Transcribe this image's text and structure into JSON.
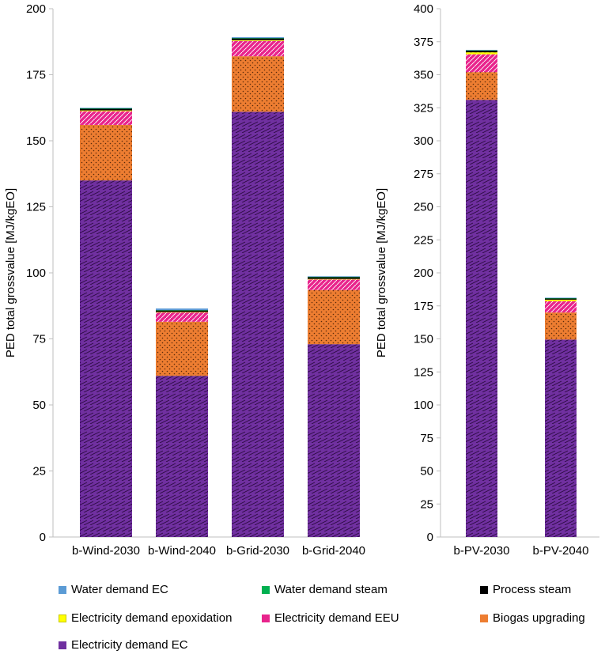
{
  "chart_data": [
    {
      "type": "bar",
      "stacked": true,
      "title": "",
      "xlabel": "",
      "ylabel": "PED total grossvalue [MJ/kgEO]",
      "ylim": [
        0,
        200
      ],
      "yticks": [
        "0",
        "25",
        "50",
        "75",
        "100",
        "125",
        "150",
        "175",
        "200"
      ],
      "categories": [
        "b-Wind-2030",
        "b-Wind-2040",
        "b-Grid-2030",
        "b-Grid-2040"
      ],
      "series": [
        {
          "name": "Electricity demand EC",
          "values": [
            135,
            61,
            161,
            73
          ]
        },
        {
          "name": "Biogas upgrading",
          "values": [
            21,
            20.5,
            21,
            20.5
          ]
        },
        {
          "name": "Electricity demand EEU",
          "values": [
            5.2,
            3.5,
            5.8,
            4
          ]
        },
        {
          "name": "Electricity demand epoxidation",
          "values": [
            0.3,
            0.2,
            0.3,
            0.2
          ]
        },
        {
          "name": "Process steam",
          "values": [
            0.7,
            0.6,
            0.7,
            0.7
          ]
        },
        {
          "name": "Water demand steam",
          "values": [
            0.1,
            0.1,
            0.1,
            0.1
          ]
        },
        {
          "name": "Water demand EC",
          "values": [
            0.2,
            0.6,
            0.3,
            0.2
          ]
        }
      ]
    },
    {
      "type": "bar",
      "stacked": true,
      "title": "",
      "xlabel": "",
      "ylabel": "PED total grossvalue [MJ/kgEO]",
      "ylim": [
        0,
        400
      ],
      "yticks": [
        "0",
        "25",
        "50",
        "75",
        "100",
        "125",
        "150",
        "175",
        "200",
        "225",
        "250",
        "275",
        "300",
        "325",
        "350",
        "375",
        "400"
      ],
      "categories": [
        "b-PV-2030",
        "b-PV-2040"
      ],
      "series": [
        {
          "name": "Electricity demand EC",
          "values": [
            331,
            149.5
          ]
        },
        {
          "name": "Biogas upgrading",
          "values": [
            21,
            20.5
          ]
        },
        {
          "name": "Electricity demand EEU",
          "values": [
            13.5,
            8.5
          ]
        },
        {
          "name": "Electricity demand epoxidation",
          "values": [
            1.5,
            1.2
          ]
        },
        {
          "name": "Process steam",
          "values": [
            1.3,
            1.0
          ]
        },
        {
          "name": "Water demand steam",
          "values": [
            0.2,
            0.2
          ]
        },
        {
          "name": "Water demand EC",
          "values": [
            0.3,
            0.3
          ]
        }
      ]
    }
  ],
  "colors": {
    "Electricity demand EC": "#7030a0",
    "Biogas upgrading": "#ed7d31",
    "Electricity demand EEU": "#e8248c",
    "Electricity demand epoxidation": "#ffff00",
    "Process steam": "#000000",
    "Water demand steam": "#00b050",
    "Water demand EC": "#5b9bd5"
  },
  "legend": [
    {
      "label": "Water demand EC",
      "color": "#5b9bd5"
    },
    {
      "label": "Water demand steam",
      "color": "#00b050"
    },
    {
      "label": "Process steam",
      "color": "#000000"
    },
    {
      "label": "Electricity demand epoxidation",
      "color": "#ffff00"
    },
    {
      "label": "Electricity demand EEU",
      "color": "#e8248c"
    },
    {
      "label": "Biogas upgrading",
      "color": "#ed7d31"
    },
    {
      "label": "Electricity demand EC",
      "color": "#7030a0"
    }
  ]
}
